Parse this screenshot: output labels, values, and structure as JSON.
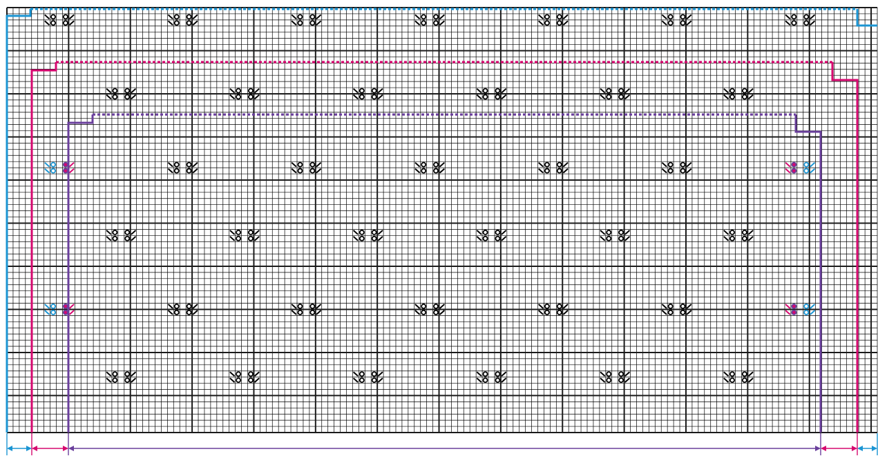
{
  "colors": {
    "background": "#ffffff",
    "grid_fine": "#000000",
    "grid_bold": "#1a1a1a",
    "size_small": "#1b95d3",
    "size_medium": "#d6086f",
    "size_large": "#6a3f9c",
    "stitch_symbol": "#000000"
  },
  "grid": {
    "columns": 141,
    "rows": 69,
    "bold_every_columns": 10,
    "bold_every_rows": 7
  },
  "symbols": {
    "yarn_over": "o",
    "decrease_left": "\\",
    "decrease_right": "/"
  },
  "outlines": [
    {
      "size": "small",
      "color_key": "size_small"
    },
    {
      "size": "medium",
      "color_key": "size_medium"
    },
    {
      "size": "large",
      "color_key": "size_large"
    }
  ],
  "width_arrows": [
    "small",
    "medium",
    "large",
    "medium",
    "small"
  ]
}
